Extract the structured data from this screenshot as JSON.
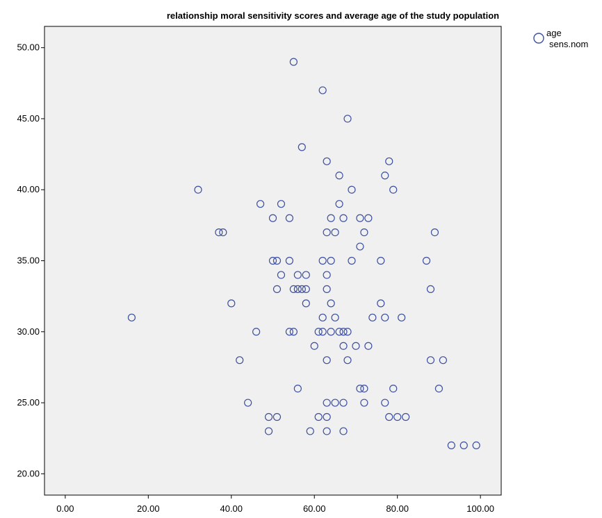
{
  "chart_data": {
    "type": "scatter",
    "title": "relationship moral sensitivity scores and average age of the study population",
    "xlabel": "",
    "ylabel": "",
    "xlim": [
      -5,
      105
    ],
    "ylim": [
      18.5,
      51.5
    ],
    "x_ticks": [
      "0.00",
      "20.00",
      "40.00",
      "60.00",
      "80.00",
      "100.00"
    ],
    "y_ticks": [
      "20.00",
      "25.00",
      "30.00",
      "35.00",
      "40.00",
      "45.00",
      "50.00"
    ],
    "grid": false,
    "legend_position": "top-right",
    "legend_line1": "age",
    "legend_line2": "sens.nom",
    "colors": {
      "marker": "#3d4f9f",
      "plot_bg": "#f0f0f0",
      "axis": "#000000"
    },
    "series": [
      {
        "marker": "circle-open",
        "points": [
          [
            16,
            31
          ],
          [
            32,
            40
          ],
          [
            37,
            37
          ],
          [
            38,
            37
          ],
          [
            40,
            32
          ],
          [
            42,
            28
          ],
          [
            44,
            25
          ],
          [
            46,
            30
          ],
          [
            47,
            39
          ],
          [
            49,
            24
          ],
          [
            49,
            23
          ],
          [
            50,
            38
          ],
          [
            50,
            35
          ],
          [
            51,
            35
          ],
          [
            51,
            33
          ],
          [
            51,
            24
          ],
          [
            52,
            39
          ],
          [
            52,
            34
          ],
          [
            54,
            38
          ],
          [
            54,
            35
          ],
          [
            54,
            30
          ],
          [
            55,
            33
          ],
          [
            55,
            30
          ],
          [
            55,
            49
          ],
          [
            56,
            34
          ],
          [
            56,
            33
          ],
          [
            56,
            26
          ],
          [
            57,
            43
          ],
          [
            57,
            33
          ],
          [
            58,
            34
          ],
          [
            58,
            33
          ],
          [
            58,
            32
          ],
          [
            59,
            23
          ],
          [
            60,
            29
          ],
          [
            61,
            30
          ],
          [
            61,
            24
          ],
          [
            62,
            47
          ],
          [
            62,
            35
          ],
          [
            62,
            31
          ],
          [
            62,
            30
          ],
          [
            63,
            42
          ],
          [
            63,
            37
          ],
          [
            63,
            34
          ],
          [
            63,
            33
          ],
          [
            63,
            28
          ],
          [
            63,
            25
          ],
          [
            63,
            24
          ],
          [
            63,
            23
          ],
          [
            64,
            38
          ],
          [
            64,
            35
          ],
          [
            64,
            32
          ],
          [
            64,
            30
          ],
          [
            65,
            37
          ],
          [
            65,
            31
          ],
          [
            65,
            25
          ],
          [
            66,
            41
          ],
          [
            66,
            39
          ],
          [
            66,
            30
          ],
          [
            67,
            38
          ],
          [
            67,
            30
          ],
          [
            67,
            29
          ],
          [
            67,
            25
          ],
          [
            67,
            23
          ],
          [
            68,
            45
          ],
          [
            68,
            30
          ],
          [
            68,
            28
          ],
          [
            69,
            40
          ],
          [
            69,
            35
          ],
          [
            70,
            29
          ],
          [
            71,
            38
          ],
          [
            71,
            36
          ],
          [
            71,
            26
          ],
          [
            72,
            37
          ],
          [
            72,
            26
          ],
          [
            72,
            25
          ],
          [
            73,
            38
          ],
          [
            73,
            29
          ],
          [
            74,
            31
          ],
          [
            76,
            35
          ],
          [
            76,
            32
          ],
          [
            77,
            41
          ],
          [
            77,
            31
          ],
          [
            77,
            25
          ],
          [
            78,
            42
          ],
          [
            78,
            24
          ],
          [
            79,
            40
          ],
          [
            79,
            26
          ],
          [
            80,
            24
          ],
          [
            81,
            31
          ],
          [
            82,
            24
          ],
          [
            87,
            35
          ],
          [
            88,
            33
          ],
          [
            88,
            28
          ],
          [
            89,
            37
          ],
          [
            90,
            26
          ],
          [
            91,
            28
          ],
          [
            93,
            22
          ],
          [
            96,
            22
          ],
          [
            99,
            22
          ]
        ]
      }
    ]
  }
}
